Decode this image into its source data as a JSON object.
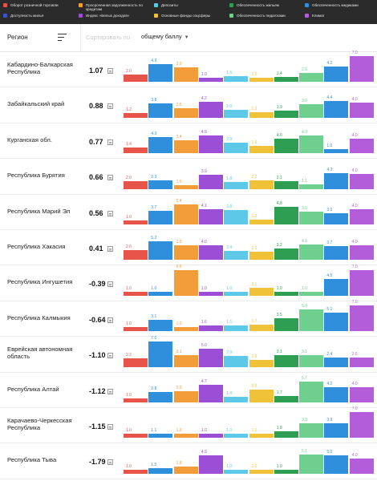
{
  "legend": [
    {
      "label": "Оборот розничной торговли",
      "color": "#e8534a"
    },
    {
      "label": "Просроченная задолженность по кредитам",
      "color": "#f39d3a"
    },
    {
      "label": "Депозиты",
      "color": "#5ec8e8"
    },
    {
      "label": "Обеспеченность жильем",
      "color": "#2e9e52"
    },
    {
      "label": "Обеспеченность медиками",
      "color": "#2f8fdc"
    },
    {
      "label": "Доступность жилья",
      "color": "#3f51c8"
    },
    {
      "label": "Индекс «Белых доходов»",
      "color": "#9b4fd6"
    },
    {
      "label": "Основные фонды соцсферы",
      "color": "#f0c23a"
    },
    {
      "label": "Обеспеченность педагогами",
      "color": "#6fcf8e"
    },
    {
      "label": "Климат",
      "color": "#b35ddb"
    }
  ],
  "header": {
    "region_label": "Регион",
    "sort_label": "Сортировать по",
    "sort_value": "общему баллу"
  },
  "chart_data": {
    "type": "bar",
    "bar_colors": [
      "#e8534a",
      "#2f8fdc",
      "#f39d3a",
      "#9b4fd6",
      "#5ec8e8",
      "#f0c23a",
      "#2e9e52",
      "#6fcf8e",
      "#2f8fdc",
      "#b35ddb"
    ],
    "value_range": [
      1.0,
      7.0
    ],
    "rows": [
      {
        "name": "Кабардино-Балкарская Республика",
        "score": "1.07",
        "values": [
          2.0,
          4.9,
          3.9,
          1.0,
          1.6,
          1.0,
          1.4,
          2.5,
          4.2,
          7.0
        ]
      },
      {
        "name": "Забайкальский край",
        "score": "0.88",
        "values": [
          1.2,
          3.8,
          2.5,
          4.2,
          2.0,
          1.3,
          1.9,
          3.6,
          4.4,
          4.0
        ]
      },
      {
        "name": "Курганская обл.",
        "score": "0.77",
        "values": [
          1.4,
          4.3,
          3.4,
          4.9,
          2.9,
          1.9,
          4.0,
          4.9,
          1.0,
          4.0
        ]
      },
      {
        "name": "Республика Бурятия",
        "score": "0.66",
        "values": [
          2.0,
          2.3,
          1.0,
          3.9,
          1.8,
          2.2,
          2.1,
          1.1,
          4.3,
          4.0
        ]
      },
      {
        "name": "Республика Марий Эл",
        "score": "0.56",
        "values": [
          1.0,
          3.7,
          5.4,
          4.1,
          3.8,
          1.3,
          4.8,
          3.5,
          3.0,
          4.0
        ]
      },
      {
        "name": "Республика Хакасия",
        "score": "0.41",
        "values": [
          2.6,
          5.2,
          3.9,
          4.0,
          2.4,
          2.3,
          3.2,
          4.1,
          3.7,
          4.0
        ]
      },
      {
        "name": "Республика Ингушетия",
        "score": "-0.39",
        "values": [
          1.0,
          1.0,
          9.6,
          1.0,
          1.0,
          2.1,
          1.0,
          1.0,
          4.5,
          7.0
        ]
      },
      {
        "name": "Республика Калмыкия",
        "score": "-0.64",
        "values": [
          1.0,
          3.1,
          1.0,
          1.6,
          1.5,
          1.7,
          3.5,
          5.9,
          5.1,
          7.0
        ]
      },
      {
        "name": "Еврейская автономная область",
        "score": "-1.10",
        "values": [
          2.2,
          7.0,
          3.1,
          5.0,
          2.9,
          1.9,
          3.1,
          3.1,
          2.4,
          2.5
        ]
      },
      {
        "name": "Республика Алтай",
        "score": "-1.12",
        "values": [
          1.0,
          2.8,
          2.9,
          4.7,
          1.4,
          3.5,
          1.7,
          5.7,
          4.2,
          4.0
        ]
      },
      {
        "name": "Карачаево-Черкесская Республика",
        "score": "-1.15",
        "values": [
          1.0,
          1.1,
          1.0,
          1.0,
          1.0,
          1.0,
          1.8,
          3.9,
          3.9,
          7.0
        ]
      },
      {
        "name": "Республика Тыва",
        "score": "-1.79",
        "values": [
          1.0,
          1.5,
          1.8,
          4.9,
          1.0,
          1.0,
          1.0,
          5.1,
          5.0,
          4.0
        ]
      }
    ]
  }
}
